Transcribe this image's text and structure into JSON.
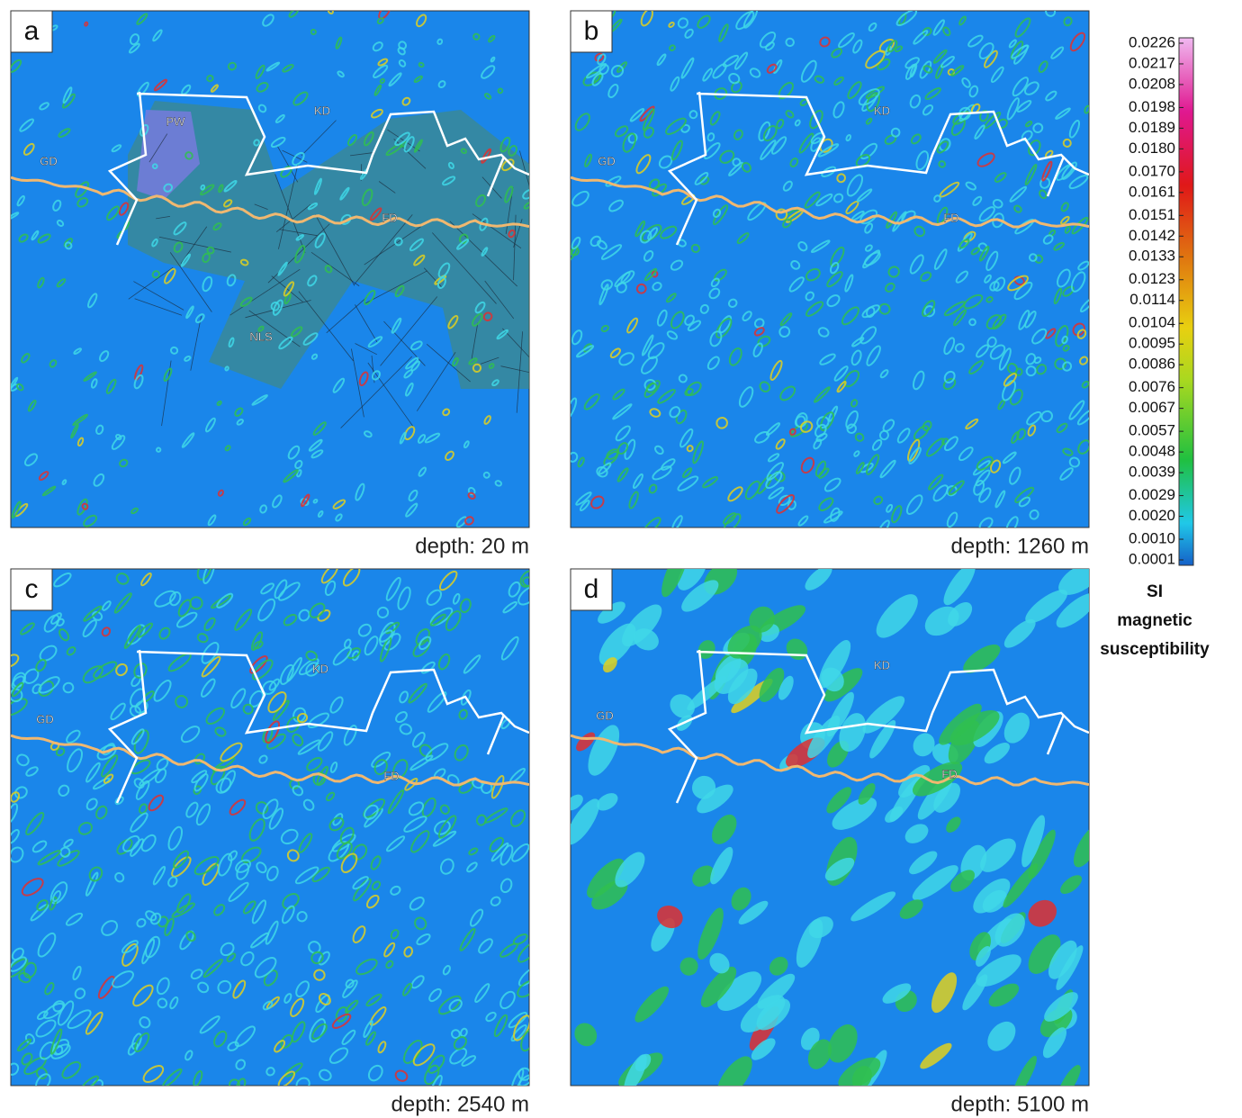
{
  "panels": [
    {
      "letter": "a",
      "depth": "depth: 20 m",
      "labels": [
        "GD",
        "PW",
        "KD",
        "FD",
        "NLS"
      ]
    },
    {
      "letter": "b",
      "depth": "depth: 1260 m",
      "labels": [
        "GD",
        "KD",
        "FD"
      ]
    },
    {
      "letter": "c",
      "depth": "depth: 2540 m",
      "labels": [
        "GD",
        "KD",
        "FD"
      ]
    },
    {
      "letter": "d",
      "depth": "depth: 5100 m",
      "labels": [
        "GD",
        "KD",
        "FD"
      ]
    }
  ],
  "colorbar": {
    "ticks": [
      0.0226,
      0.0217,
      0.0208,
      0.0198,
      0.0189,
      {
        "value": 0.018,
        "label": "0.0180"
      },
      {
        "value": 0.017,
        "label": "0.0170"
      },
      0.0161,
      0.0151,
      0.0142,
      0.0133,
      0.0123,
      0.0114,
      0.0104,
      0.0095,
      0.0086,
      0.0076,
      0.0067,
      0.0057,
      0.0048,
      0.0039,
      0.0029,
      {
        "value": 0.002,
        "label": "0.0020"
      },
      {
        "value": 0.001,
        "label": "0.0010"
      },
      0.0001
    ],
    "unit": "SI",
    "title": [
      "magnetic",
      "susceptibility"
    ]
  }
}
